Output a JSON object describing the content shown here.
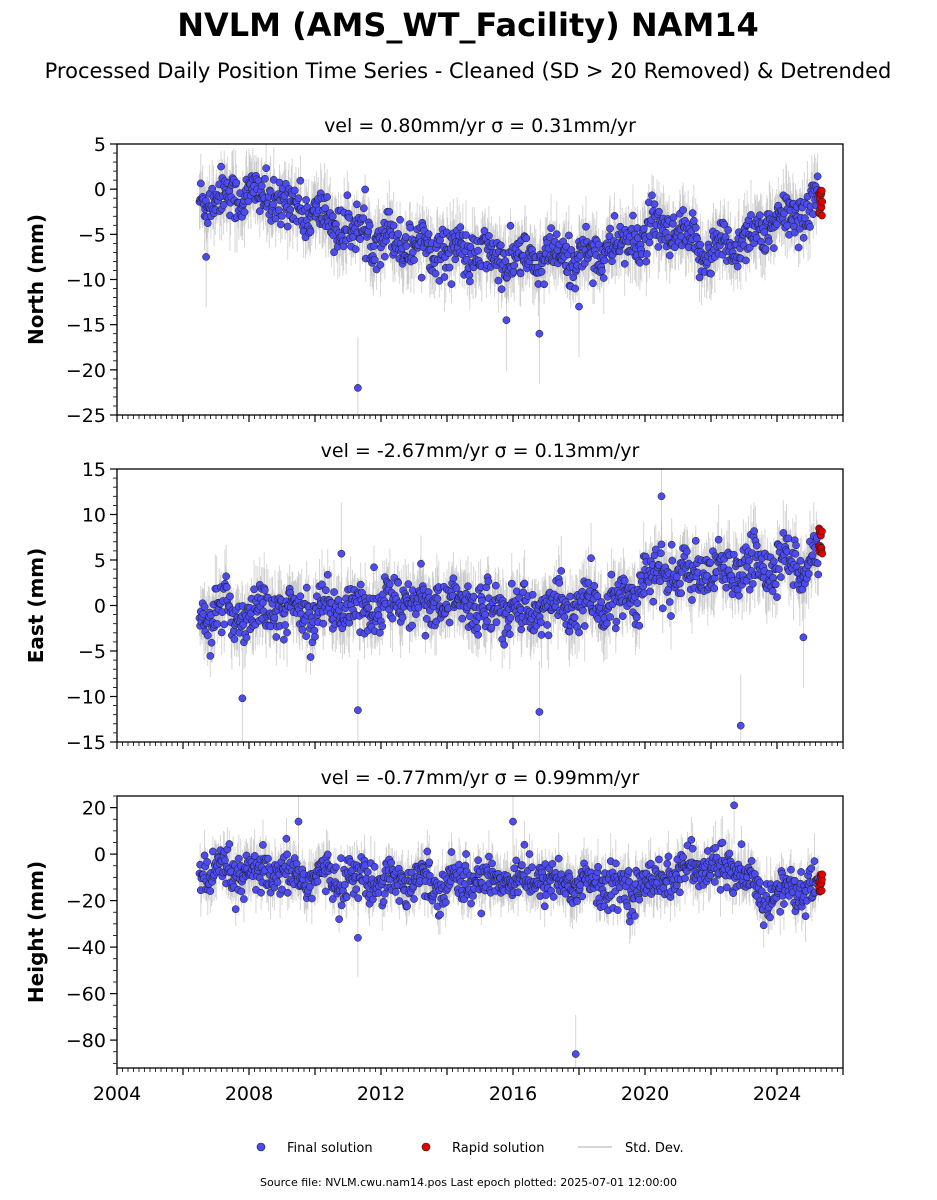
{
  "figure": {
    "title": "NVLM (AMS_WT_Facility) NAM14",
    "subtitle": "Processed Daily Position Time Series - Cleaned (SD > 20 Removed) & Detrended",
    "source_text": "Source file: NVLM.cwu.nam14.pos  Last epoch plotted: 2025-07-01 12:00:00"
  },
  "legend": {
    "placement": "bottom-center",
    "final_label": "Final solution",
    "rapid_label": "Rapid solution",
    "std_label": "Std. Dev."
  },
  "colors": {
    "final": "#4b4bf0",
    "rapid": "#e00000",
    "std": "#b4b4b4",
    "edge": "#1a1a1a"
  },
  "chart_data": [
    {
      "type": "scatter",
      "ylabel": "North (mm)",
      "title": "vel = 0.80mm/yr   σ = 0.31mm/yr",
      "vel_text": "vel = 0.80mm/yr",
      "sigma_text": "σ = 0.31mm/yr",
      "xlim": [
        2004.0,
        2026.0
      ],
      "ylim": [
        -25,
        5
      ],
      "yticks": [
        5,
        0,
        -5,
        -10,
        -15,
        -20,
        -25
      ],
      "final_start": 2006.5,
      "final_end": 2025.25,
      "rapid_range": [
        2025.25,
        2025.5
      ],
      "rapid_values": [
        0,
        -3
      ],
      "trend": [
        [
          2006.5,
          -1
        ],
        [
          2008.0,
          -0.5
        ],
        [
          2009.5,
          -2
        ],
        [
          2011.0,
          -4.5
        ],
        [
          2013.0,
          -6
        ],
        [
          2016.0,
          -8
        ],
        [
          2018.0,
          -7.5
        ],
        [
          2019.5,
          -6
        ],
        [
          2020.5,
          -4.5
        ],
        [
          2022.0,
          -7
        ],
        [
          2023.0,
          -5.5
        ],
        [
          2024.5,
          -3
        ],
        [
          2025.25,
          -1
        ]
      ],
      "scatter_sd": 1.3,
      "outliers": [
        [
          2011.3,
          -22
        ],
        [
          2015.8,
          -14.5
        ],
        [
          2016.8,
          -16
        ],
        [
          2006.7,
          -7.5
        ],
        [
          2018.0,
          -13
        ]
      ],
      "std_dev_range": [
        1.5,
        4
      ]
    },
    {
      "type": "scatter",
      "ylabel": "East (mm)",
      "title": "vel = -2.67mm/yr   σ = 0.13mm/yr",
      "vel_text": "vel = -2.67mm/yr",
      "sigma_text": "σ = 0.13mm/yr",
      "xlim": [
        2004.0,
        2026.0
      ],
      "ylim": [
        -15,
        15
      ],
      "yticks": [
        15,
        10,
        5,
        0,
        -5,
        -10,
        -15
      ],
      "final_start": 2006.5,
      "final_end": 2025.25,
      "rapid_range": [
        2025.25,
        2025.5
      ],
      "rapid_values": [
        5.5,
        8.5
      ],
      "trend": [
        [
          2006.5,
          -1
        ],
        [
          2010.0,
          -0.5
        ],
        [
          2013.0,
          0.5
        ],
        [
          2016.0,
          -0.5
        ],
        [
          2019.0,
          0
        ],
        [
          2020.5,
          3.5
        ],
        [
          2022.0,
          3
        ],
        [
          2023.5,
          4.5
        ],
        [
          2025.25,
          5
        ]
      ],
      "scatter_sd": 1.4,
      "outliers": [
        [
          2007.8,
          -10.2
        ],
        [
          2011.3,
          -11.5
        ],
        [
          2016.8,
          -11.7
        ],
        [
          2022.9,
          -13.2
        ],
        [
          2020.5,
          12
        ],
        [
          2024.8,
          -3.5
        ],
        [
          2010.8,
          5.7
        ]
      ],
      "std_dev_range": [
        1.5,
        4
      ]
    },
    {
      "type": "scatter",
      "ylabel": "Height (mm)",
      "title": "vel = -0.77mm/yr   σ = 0.99mm/yr",
      "vel_text": "vel = -0.77mm/yr",
      "sigma_text": "σ = 0.99mm/yr",
      "xlim": [
        2004.0,
        2026.0
      ],
      "ylim": [
        -92,
        25
      ],
      "yticks": [
        20,
        0,
        -20,
        -40,
        -60,
        -80
      ],
      "xticks": [
        2004,
        2008,
        2012,
        2016,
        2020,
        2024
      ],
      "final_start": 2006.5,
      "final_end": 2025.25,
      "rapid_range": [
        2025.25,
        2025.5
      ],
      "rapid_values": [
        -7,
        -17
      ],
      "trend": [
        [
          2006.5,
          -8
        ],
        [
          2010.0,
          -10
        ],
        [
          2014.0,
          -12
        ],
        [
          2016.0,
          -10
        ],
        [
          2019.5,
          -15
        ],
        [
          2021.0,
          -8
        ],
        [
          2022.5,
          -5
        ],
        [
          2023.5,
          -18
        ],
        [
          2025.25,
          -14
        ]
      ],
      "scatter_sd": 4.5,
      "outliers": [
        [
          2017.9,
          -86
        ],
        [
          2011.3,
          -36
        ],
        [
          2022.7,
          21
        ],
        [
          2009.5,
          14
        ],
        [
          2016.0,
          14
        ]
      ],
      "std_dev_range": [
        5,
        12
      ]
    }
  ]
}
